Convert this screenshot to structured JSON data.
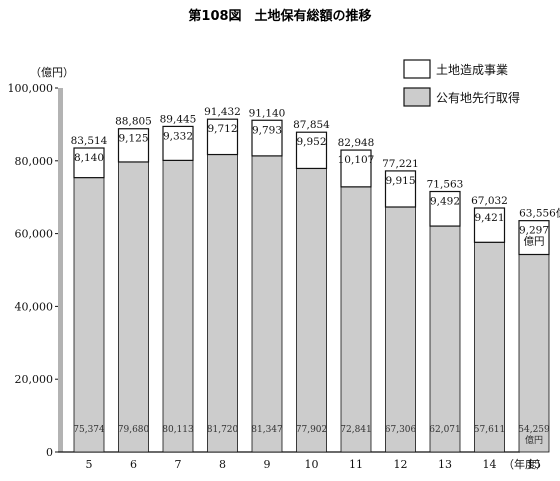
{
  "chart_data": {
    "type": "bar",
    "title": "第108図　土地保有総額の推移",
    "ylabel": "（億円）",
    "xlabel": "（年度）",
    "ylim": [
      0,
      100000
    ],
    "yticks": [
      "0",
      "20,000",
      "40,000",
      "60,000",
      "80,000",
      "100,000"
    ],
    "ytick_values": [
      0,
      20000,
      40000,
      60000,
      80000,
      100000
    ],
    "categories": [
      "5",
      "6",
      "7",
      "8",
      "9",
      "10",
      "11",
      "12",
      "13",
      "14",
      "15"
    ],
    "series": [
      {
        "name": "公有地先行取得",
        "values": [
          75374,
          79680,
          80113,
          81720,
          81347,
          77902,
          72841,
          67306,
          62071,
          57611,
          54259
        ],
        "labels": [
          "75,374",
          "79,680",
          "80,113",
          "81,720",
          "81,347",
          "77,902",
          "72,841",
          "67,306",
          "62,071",
          "57,611",
          "54,259"
        ],
        "color": "#cccccc"
      },
      {
        "name": "土地造成事業",
        "values": [
          8140,
          9125,
          9332,
          9712,
          9793,
          9952,
          10107,
          9915,
          9492,
          9421,
          9297
        ],
        "labels": [
          "8,140",
          "9,125",
          "9,332",
          "9,712",
          "9,793",
          "9,952",
          "10,107",
          "9,915",
          "9,492",
          "9,421",
          "9,297"
        ],
        "color": "#ffffff"
      }
    ],
    "totals": [
      83514,
      88805,
      89445,
      91432,
      91140,
      87854,
      82948,
      77221,
      71563,
      67032,
      63556
    ],
    "total_labels": [
      "83,514",
      "88,805",
      "89,445",
      "91,432",
      "91,140",
      "87,854",
      "82,948",
      "77,221",
      "71,563",
      "67,032",
      "63,556億円"
    ],
    "last_unit": "億円",
    "legend": [
      "土地造成事業",
      "公有地先行取得"
    ],
    "legend_position": "top-right",
    "grid": false
  }
}
